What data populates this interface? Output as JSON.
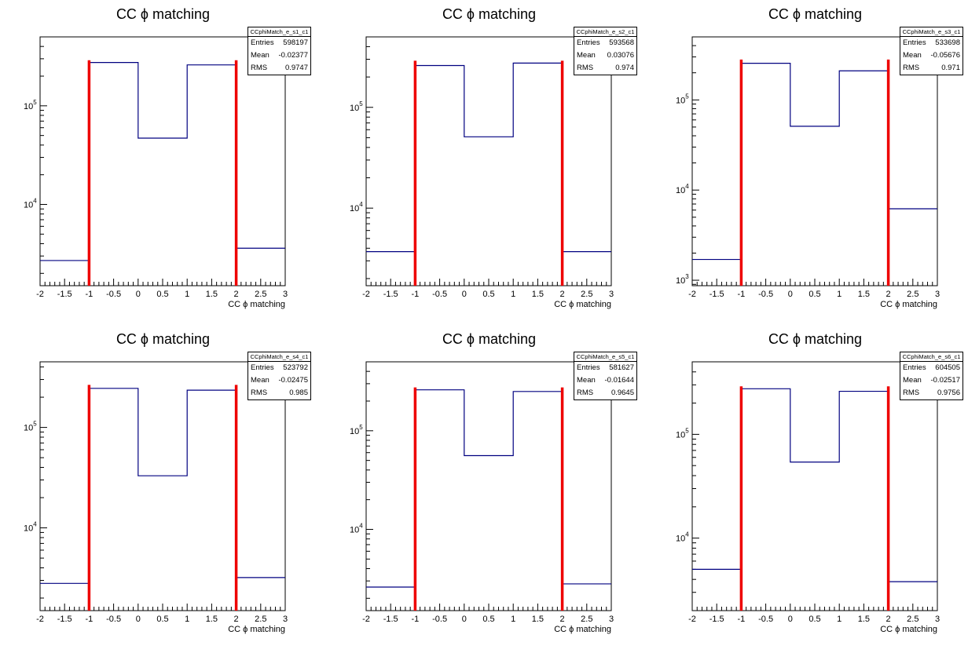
{
  "chart_data": [
    {
      "type": "step",
      "title": "CC ϕ matching",
      "xlabel": "CC ϕ matching",
      "ylabel": "",
      "xlim": [
        -2,
        3
      ],
      "log_y": true,
      "ylim": [
        1500,
        500000
      ],
      "yticks": [
        {
          "v": 10000,
          "b": "10",
          "e": "4"
        },
        {
          "v": 100000,
          "b": "10",
          "e": "5"
        }
      ],
      "xticks": [
        "-2",
        "-1.5",
        "-1",
        "-0.5",
        "0",
        "0.5",
        "1",
        "1.5",
        "2",
        "2.5",
        "3"
      ],
      "bin_edges": [
        -2,
        -1,
        0,
        1,
        2,
        3
      ],
      "values": [
        2700,
        275000,
        47000,
        260000,
        3600
      ],
      "cut_lines": [
        -1,
        2
      ],
      "cut_top": 290000,
      "stats": {
        "name": "CCphiMatch_e_s1_c1",
        "rows": [
          {
            "label": "Entries",
            "value": "598197"
          },
          {
            "label": "Mean",
            "value": "-0.02377"
          },
          {
            "label": "RMS",
            "value": "0.9747"
          }
        ]
      }
    },
    {
      "type": "step",
      "title": "CC ϕ matching",
      "xlabel": "CC ϕ matching",
      "ylabel": "",
      "xlim": [
        -2,
        3
      ],
      "log_y": true,
      "ylim": [
        1700,
        500000
      ],
      "yticks": [
        {
          "v": 10000,
          "b": "10",
          "e": "4"
        },
        {
          "v": 100000,
          "b": "10",
          "e": "5"
        }
      ],
      "xticks": [
        "-2",
        "-1.5",
        "-1",
        "-0.5",
        "0",
        "0.5",
        "1",
        "1.5",
        "2",
        "2.5",
        "3"
      ],
      "bin_edges": [
        -2,
        -1,
        0,
        1,
        2,
        3
      ],
      "values": [
        3700,
        260000,
        51000,
        275000,
        3700
      ],
      "cut_lines": [
        -1,
        2
      ],
      "cut_top": 290000,
      "stats": {
        "name": "CCphiMatch_e_s2_c1",
        "rows": [
          {
            "label": "Entries",
            "value": "593568"
          },
          {
            "label": "Mean",
            "value": "0.03076"
          },
          {
            "label": "RMS",
            "value": "0.974"
          }
        ]
      }
    },
    {
      "type": "step",
      "title": "CC ϕ matching",
      "xlabel": "CC ϕ matching",
      "ylabel": "",
      "xlim": [
        -2,
        3
      ],
      "log_y": true,
      "ylim": [
        870,
        500000
      ],
      "yticks": [
        {
          "v": 1000,
          "b": "10",
          "e": "3"
        },
        {
          "v": 10000,
          "b": "10",
          "e": "4"
        },
        {
          "v": 100000,
          "b": "10",
          "e": "5"
        }
      ],
      "xticks": [
        "-2",
        "-1.5",
        "-1",
        "-0.5",
        "0",
        "0.5",
        "1",
        "1.5",
        "2",
        "2.5",
        "3"
      ],
      "bin_edges": [
        -2,
        -1,
        0,
        1,
        2,
        3
      ],
      "values": [
        1700,
        255000,
        51000,
        210000,
        6200
      ],
      "cut_lines": [
        -1,
        2
      ],
      "cut_top": 280000,
      "stats": {
        "name": "CCphiMatch_e_s3_c1",
        "rows": [
          {
            "label": "Entries",
            "value": "533698"
          },
          {
            "label": "Mean",
            "value": "-0.05676"
          },
          {
            "label": "RMS",
            "value": "0.971"
          }
        ]
      }
    },
    {
      "type": "step",
      "title": "CC ϕ matching",
      "xlabel": "CC ϕ matching",
      "ylabel": "",
      "xlim": [
        -2,
        3
      ],
      "log_y": true,
      "ylim": [
        1500,
        450000
      ],
      "yticks": [
        {
          "v": 10000,
          "b": "10",
          "e": "4"
        },
        {
          "v": 100000,
          "b": "10",
          "e": "5"
        }
      ],
      "xticks": [
        "-2",
        "-1.5",
        "-1",
        "-0.5",
        "0",
        "0.5",
        "1",
        "1.5",
        "2",
        "2.5",
        "3"
      ],
      "bin_edges": [
        -2,
        -1,
        0,
        1,
        2,
        3
      ],
      "values": [
        2800,
        245000,
        33000,
        235000,
        3200
      ],
      "cut_lines": [
        -1,
        2
      ],
      "cut_top": 265000,
      "stats": {
        "name": "CCphiMatch_e_s4_c1",
        "rows": [
          {
            "label": "Entries",
            "value": "523792"
          },
          {
            "label": "Mean",
            "value": "-0.02475"
          },
          {
            "label": "RMS",
            "value": "0.985"
          }
        ]
      }
    },
    {
      "type": "step",
      "title": "CC ϕ matching",
      "xlabel": "CC ϕ matching",
      "ylabel": "",
      "xlim": [
        -2,
        3
      ],
      "log_y": true,
      "ylim": [
        1500,
        500000
      ],
      "yticks": [
        {
          "v": 10000,
          "b": "10",
          "e": "4"
        },
        {
          "v": 100000,
          "b": "10",
          "e": "5"
        }
      ],
      "xticks": [
        "-2",
        "-1.5",
        "-1",
        "-0.5",
        "0",
        "0.5",
        "1",
        "1.5",
        "2",
        "2.5",
        "3"
      ],
      "bin_edges": [
        -2,
        -1,
        0,
        1,
        2,
        3
      ],
      "values": [
        2600,
        260000,
        56000,
        250000,
        2800
      ],
      "cut_lines": [
        -1,
        2
      ],
      "cut_top": 275000,
      "stats": {
        "name": "CCphiMatch_e_s5_c1",
        "rows": [
          {
            "label": "Entries",
            "value": "581627"
          },
          {
            "label": "Mean",
            "value": "-0.01644"
          },
          {
            "label": "RMS",
            "value": "0.9645"
          }
        ]
      }
    },
    {
      "type": "step",
      "title": "CC ϕ matching",
      "xlabel": "CC ϕ matching",
      "ylabel": "",
      "xlim": [
        -2,
        3
      ],
      "log_y": true,
      "ylim": [
        2000,
        500000
      ],
      "yticks": [
        {
          "v": 10000,
          "b": "10",
          "e": "4"
        },
        {
          "v": 100000,
          "b": "10",
          "e": "5"
        }
      ],
      "xticks": [
        "-2",
        "-1.5",
        "-1",
        "-0.5",
        "0",
        "0.5",
        "1",
        "1.5",
        "2",
        "2.5",
        "3"
      ],
      "bin_edges": [
        -2,
        -1,
        0,
        1,
        2,
        3
      ],
      "values": [
        5000,
        275000,
        54000,
        260000,
        3800
      ],
      "cut_lines": [
        -1,
        2
      ],
      "cut_top": 290000,
      "stats": {
        "name": "CCphiMatch_e_s6_c1",
        "rows": [
          {
            "label": "Entries",
            "value": "604505"
          },
          {
            "label": "Mean",
            "value": "-0.02517"
          },
          {
            "label": "RMS",
            "value": "0.9756"
          }
        ]
      }
    }
  ]
}
